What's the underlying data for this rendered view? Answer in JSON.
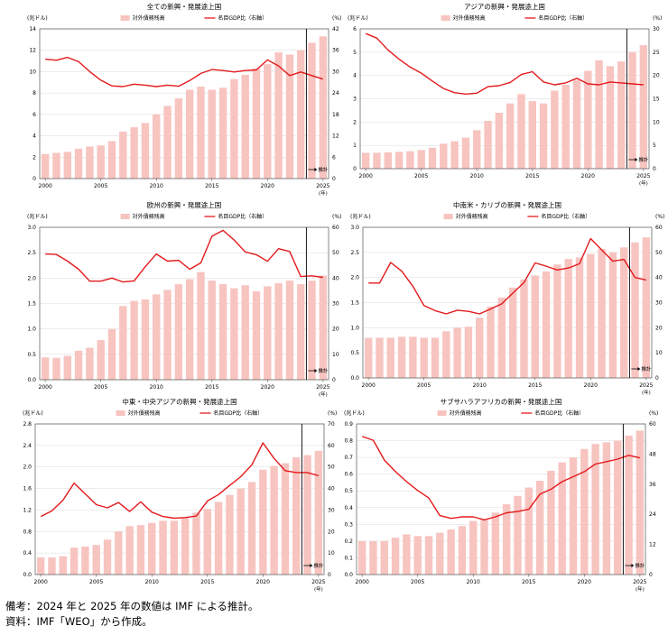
{
  "footnotes": {
    "note": "備考：2024 年と 2025 年の数値は IMF による推計。",
    "source": "資料：IMF「WEO」から作成。"
  },
  "colors": {
    "bar": "#f7c4c0",
    "line": "#e4191c",
    "axis": "#555555",
    "grid": "#d9d9d9"
  },
  "chart_data": [
    {
      "type": "bar",
      "title": "全ての新興・発展途上国",
      "ylabel": "(兆ドル)",
      "y2label": "(%)",
      "xunit": "(年)",
      "legend": [
        "対外債務残高",
        "名目GDP比（右軸）"
      ],
      "estimate_label": "推計",
      "ylim": [
        0,
        14
      ],
      "yticks": [
        0,
        2,
        4,
        6,
        8,
        10,
        12,
        14
      ],
      "y2lim": [
        0,
        42
      ],
      "y2ticks": [
        0,
        6,
        12,
        18,
        24,
        30,
        36,
        42
      ],
      "xticks": [
        "2000",
        "2005",
        "2010",
        "2015",
        "2020",
        "2025"
      ],
      "x": [
        2000,
        2001,
        2002,
        2003,
        2004,
        2005,
        2006,
        2007,
        2008,
        2009,
        2010,
        2011,
        2012,
        2013,
        2014,
        2015,
        2016,
        2017,
        2018,
        2019,
        2020,
        2021,
        2022,
        2023,
        2024,
        2025
      ],
      "series": [
        {
          "name": "対外債務残高",
          "type": "bar",
          "values": [
            2.3,
            2.4,
            2.5,
            2.8,
            3.0,
            3.1,
            3.5,
            4.4,
            4.8,
            5.2,
            6.0,
            6.8,
            7.5,
            8.3,
            8.6,
            8.3,
            8.5,
            9.3,
            9.7,
            10.3,
            10.7,
            11.8,
            11.6,
            12.0,
            12.7,
            13.3
          ]
        },
        {
          "name": "名目GDP比",
          "type": "line",
          "axis": "right",
          "values": [
            33.5,
            33.2,
            34.0,
            32.8,
            30.0,
            27.6,
            26.0,
            25.8,
            26.5,
            26.2,
            25.8,
            26.2,
            25.9,
            27.5,
            29.5,
            30.6,
            30.3,
            29.9,
            30.3,
            30.5,
            33.3,
            31.6,
            28.9,
            29.9,
            28.9,
            27.9
          ]
        }
      ]
    },
    {
      "type": "bar",
      "title": "アジアの新興・発展途上国",
      "ylabel": "(兆ドル)",
      "y2label": "(%)",
      "xunit": "(年)",
      "legend": [
        "対外債務残高",
        "名目GDP比（右軸）"
      ],
      "estimate_label": "推計",
      "ylim": [
        0,
        6
      ],
      "yticks": [
        0,
        1,
        2,
        3,
        4,
        5,
        6
      ],
      "y2lim": [
        0,
        30
      ],
      "y2ticks": [
        0,
        5,
        10,
        15,
        20,
        25,
        30
      ],
      "xticks": [
        "2000",
        "2005",
        "2010",
        "2015",
        "2020",
        "2025"
      ],
      "x": [
        2000,
        2001,
        2002,
        2003,
        2004,
        2005,
        2006,
        2007,
        2008,
        2009,
        2010,
        2011,
        2012,
        2013,
        2014,
        2015,
        2016,
        2017,
        2018,
        2019,
        2020,
        2021,
        2022,
        2023,
        2024,
        2025
      ],
      "series": [
        {
          "name": "対外債務残高",
          "type": "bar",
          "values": [
            0.68,
            0.68,
            0.7,
            0.72,
            0.75,
            0.8,
            0.9,
            1.07,
            1.18,
            1.33,
            1.65,
            2.05,
            2.4,
            2.8,
            3.2,
            2.9,
            2.8,
            3.35,
            3.6,
            3.8,
            4.2,
            4.65,
            4.4,
            4.6,
            5.0,
            5.3
          ]
        },
        {
          "name": "名目GDP比",
          "type": "line",
          "axis": "right",
          "values": [
            29.0,
            28.0,
            25.5,
            23.5,
            21.8,
            20.5,
            18.8,
            17.2,
            16.3,
            16.0,
            16.2,
            17.6,
            17.8,
            18.5,
            20.2,
            20.8,
            18.6,
            18.0,
            18.4,
            19.4,
            18.2,
            18.0,
            18.6,
            18.4,
            18.2,
            18.0
          ]
        }
      ]
    },
    {
      "type": "bar",
      "title": "欧州の新興・発展途上国",
      "ylabel": "(兆ドル)",
      "y2label": "(%)",
      "xunit": "(年)",
      "legend": [
        "対外債務残高",
        "名目GDP比（右軸）"
      ],
      "estimate_label": "推計",
      "ylim": [
        0,
        3.0
      ],
      "yticks": [
        0,
        0.5,
        1.0,
        1.5,
        2.0,
        2.5,
        3.0
      ],
      "y2lim": [
        0,
        60
      ],
      "y2ticks": [
        0,
        10,
        20,
        30,
        40,
        50,
        60
      ],
      "xticks": [
        "2000",
        "2005",
        "2010",
        "2015",
        "2020",
        "2025"
      ],
      "x": [
        2000,
        2001,
        2002,
        2003,
        2004,
        2005,
        2006,
        2007,
        2008,
        2009,
        2010,
        2011,
        2012,
        2013,
        2014,
        2015,
        2016,
        2017,
        2018,
        2019,
        2020,
        2021,
        2022,
        2023,
        2024,
        2025
      ],
      "series": [
        {
          "name": "対外債務残高",
          "type": "bar",
          "values": [
            0.44,
            0.43,
            0.47,
            0.57,
            0.63,
            0.78,
            1.0,
            1.45,
            1.55,
            1.58,
            1.68,
            1.77,
            1.88,
            1.98,
            2.12,
            1.95,
            1.88,
            1.8,
            1.86,
            1.74,
            1.84,
            1.9,
            1.95,
            1.88,
            1.95,
            2.05
          ]
        },
        {
          "name": "名目GDP比",
          "type": "line",
          "axis": "right",
          "values": [
            49.5,
            49.3,
            46.7,
            43.5,
            38.8,
            38.8,
            40.0,
            38.5,
            38.9,
            44.5,
            49.5,
            46.7,
            47.0,
            43.5,
            46.0,
            56.5,
            58.8,
            55.0,
            50.3,
            49.2,
            46.6,
            51.6,
            50.5,
            40.6,
            40.9,
            40.3
          ]
        }
      ]
    },
    {
      "type": "bar",
      "title": "中南米・カリブの新興・発展途上国",
      "ylabel": "(兆ドル)",
      "y2label": "(%)",
      "xunit": "(年)",
      "legend": [
        "対外債務残高",
        "名目GDP比（右軸）"
      ],
      "estimate_label": "推計",
      "ylim": [
        0,
        3.0
      ],
      "yticks": [
        0,
        0.5,
        1.0,
        1.5,
        2.0,
        2.5,
        3.0
      ],
      "y2lim": [
        0,
        60
      ],
      "y2ticks": [
        0,
        10,
        20,
        30,
        40,
        50,
        60
      ],
      "xticks": [
        "2000",
        "2005",
        "2010",
        "2015",
        "2020",
        "2025"
      ],
      "x": [
        2000,
        2001,
        2002,
        2003,
        2004,
        2005,
        2006,
        2007,
        2008,
        2009,
        2010,
        2011,
        2012,
        2013,
        2014,
        2015,
        2016,
        2017,
        2018,
        2019,
        2020,
        2021,
        2022,
        2023,
        2024,
        2025
      ],
      "series": [
        {
          "name": "対外債務残高",
          "type": "bar",
          "values": [
            0.8,
            0.8,
            0.8,
            0.82,
            0.82,
            0.8,
            0.8,
            0.93,
            1.0,
            1.02,
            1.2,
            1.42,
            1.6,
            1.8,
            1.96,
            2.04,
            2.12,
            2.26,
            2.37,
            2.4,
            2.47,
            2.57,
            2.5,
            2.6,
            2.7,
            2.8
          ]
        },
        {
          "name": "名目GDP比",
          "type": "line",
          "axis": "right",
          "values": [
            37.8,
            37.8,
            46.0,
            42.5,
            36.5,
            28.8,
            26.8,
            25.5,
            27.0,
            26.5,
            25.5,
            27.5,
            29.5,
            33.8,
            38.0,
            45.8,
            44.5,
            43.0,
            43.8,
            45.5,
            55.5,
            51.0,
            46.5,
            47.2,
            40.0,
            39.0
          ]
        }
      ]
    },
    {
      "type": "bar",
      "title": "中東・中央アジアの新興・発展途上国",
      "ylabel": "(兆ドル)",
      "y2label": "(%)",
      "xunit": "(年)",
      "legend": [
        "対外債務残高",
        "名目GDP比（右軸）"
      ],
      "estimate_label": "推計",
      "ylim": [
        0,
        2.8
      ],
      "yticks": [
        0,
        0.4,
        0.8,
        1.2,
        1.6,
        2.0,
        2.4,
        2.8
      ],
      "y2lim": [
        0,
        70
      ],
      "y2ticks": [
        0,
        10,
        20,
        30,
        40,
        50,
        60,
        70
      ],
      "xticks": [
        "2000",
        "2005",
        "2010",
        "2015",
        "2020",
        "2025"
      ],
      "x": [
        2000,
        2001,
        2002,
        2003,
        2004,
        2005,
        2006,
        2007,
        2008,
        2009,
        2010,
        2011,
        2012,
        2013,
        2014,
        2015,
        2016,
        2017,
        2018,
        2019,
        2020,
        2021,
        2022,
        2023,
        2024,
        2025
      ],
      "series": [
        {
          "name": "対外債務残高",
          "type": "bar",
          "values": [
            0.32,
            0.32,
            0.34,
            0.5,
            0.52,
            0.55,
            0.65,
            0.8,
            0.9,
            0.92,
            0.96,
            1.0,
            1.0,
            1.05,
            1.15,
            1.22,
            1.35,
            1.48,
            1.6,
            1.72,
            1.95,
            2.02,
            2.07,
            2.18,
            2.22,
            2.3
          ]
        },
        {
          "name": "名目GDP比",
          "type": "line",
          "axis": "right",
          "values": [
            27.0,
            29.6,
            34.6,
            42.5,
            37.5,
            32.5,
            31.0,
            33.5,
            29.3,
            33.8,
            29.0,
            27.0,
            26.2,
            26.5,
            27.2,
            34.2,
            37.2,
            41.4,
            45.5,
            51.0,
            61.2,
            54.0,
            48.3,
            47.4,
            47.4,
            46.0
          ]
        }
      ]
    },
    {
      "type": "bar",
      "title": "サブサハラアフリカの新興・発展途上国",
      "ylabel": "(兆ドル)",
      "y2label": "(%)",
      "xunit": "(年)",
      "legend": [
        "対外債務残高",
        "名目GDP比（右軸）"
      ],
      "estimate_label": "推計",
      "ylim": [
        0,
        0.9
      ],
      "yticks": [
        0,
        0.1,
        0.2,
        0.3,
        0.4,
        0.5,
        0.6,
        0.7,
        0.8,
        0.9
      ],
      "y2lim": [
        0,
        60
      ],
      "y2ticks": [
        0,
        12,
        24,
        36,
        48,
        60
      ],
      "xticks": [
        "2000",
        "2005",
        "2010",
        "2015",
        "2020",
        "2025"
      ],
      "x": [
        2000,
        2001,
        2002,
        2003,
        2004,
        2005,
        2006,
        2007,
        2008,
        2009,
        2010,
        2011,
        2012,
        2013,
        2014,
        2015,
        2016,
        2017,
        2018,
        2019,
        2020,
        2021,
        2022,
        2023,
        2024,
        2025
      ],
      "series": [
        {
          "name": "対外債務残高",
          "type": "bar",
          "values": [
            0.2,
            0.2,
            0.2,
            0.22,
            0.24,
            0.23,
            0.23,
            0.25,
            0.27,
            0.29,
            0.32,
            0.33,
            0.37,
            0.42,
            0.47,
            0.52,
            0.56,
            0.62,
            0.67,
            0.7,
            0.75,
            0.78,
            0.79,
            0.8,
            0.83,
            0.86
          ]
        },
        {
          "name": "名目GDP比",
          "type": "line",
          "axis": "right",
          "values": [
            55.0,
            53.5,
            45.6,
            41.0,
            37.0,
            33.5,
            30.5,
            23.5,
            22.4,
            23.0,
            23.0,
            21.8,
            23.0,
            24.6,
            25.1,
            26.0,
            32.0,
            34.0,
            37.0,
            39.0,
            41.0,
            44.0,
            45.0,
            46.0,
            47.5,
            46.5
          ]
        }
      ]
    }
  ]
}
